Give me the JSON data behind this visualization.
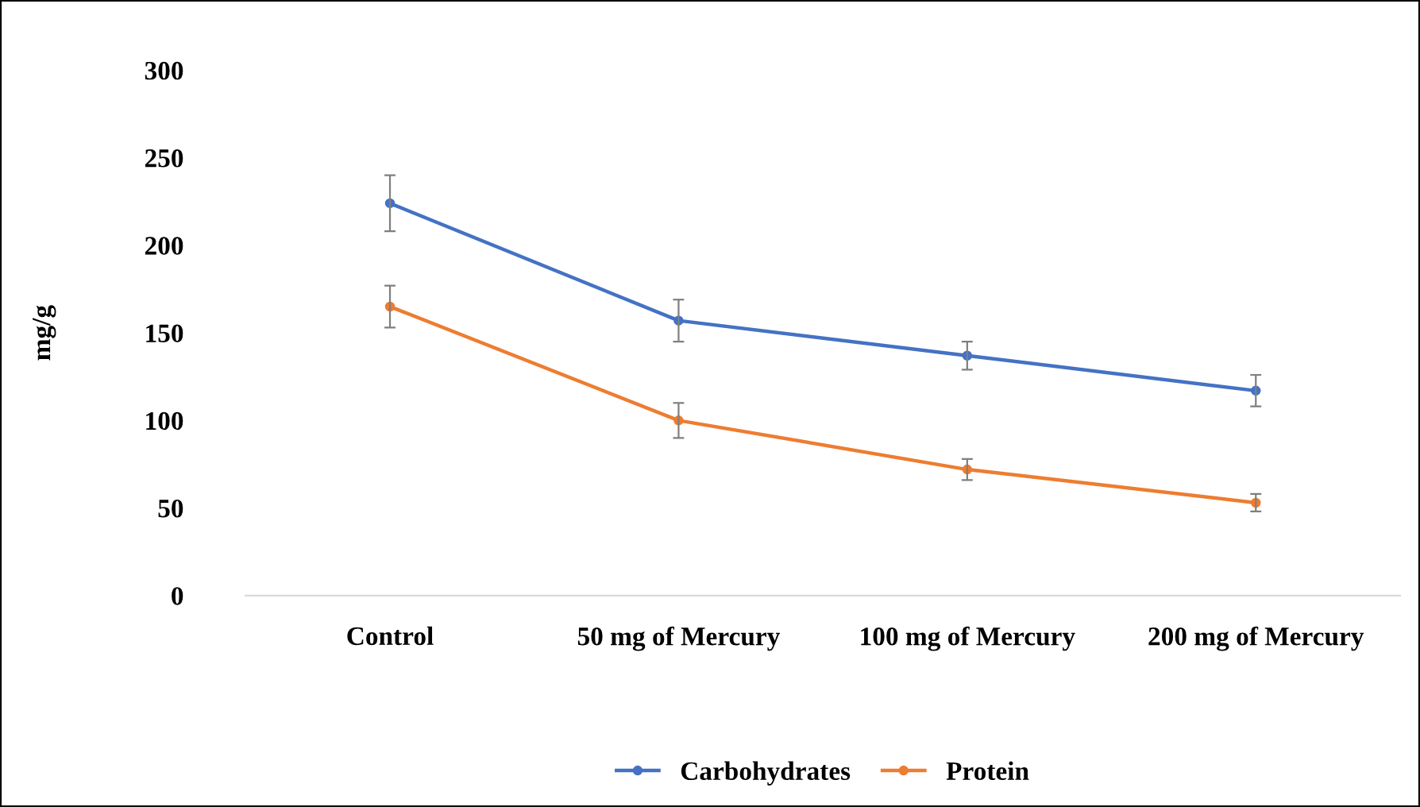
{
  "chart_data": {
    "type": "line",
    "ylabel": "mg/g",
    "categories": [
      "Control",
      "50 mg of Mercury",
      "100 mg of Mercury",
      "200 mg of Mercury"
    ],
    "series": [
      {
        "name": "Carbohydrates",
        "color": "#4472c4",
        "values": [
          224,
          157,
          137,
          117
        ],
        "errors": [
          16,
          12,
          8,
          9
        ]
      },
      {
        "name": "Protein",
        "color": "#ed7d31",
        "values": [
          165,
          100,
          72,
          53
        ],
        "errors": [
          12,
          10,
          6,
          5
        ]
      }
    ],
    "ylim": [
      0,
      300
    ],
    "yticks": [
      0,
      50,
      100,
      150,
      200,
      250,
      300
    ],
    "grid": false,
    "legend": "bottom",
    "marker": "circle",
    "line_style": "solid"
  }
}
